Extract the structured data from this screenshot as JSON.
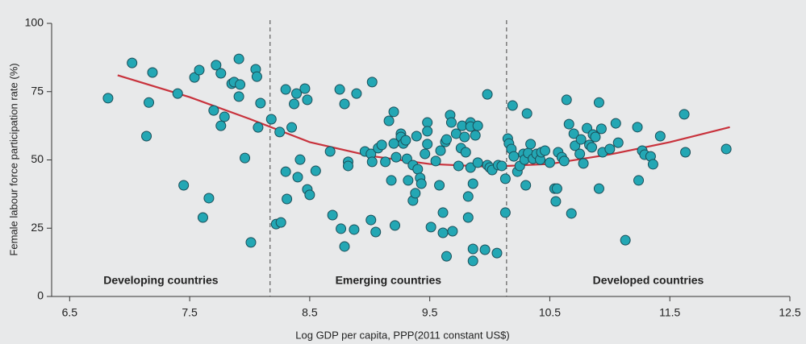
{
  "chart_data": {
    "type": "scatter",
    "xlabel": "Log GDP per capita, PPP(2011 constant US$)",
    "ylabel": "Female labour force participation rate (%)",
    "xlim": [
      6.35,
      12.5
    ],
    "ylim": [
      0,
      100
    ],
    "xticks": [
      6.5,
      7.5,
      8.5,
      9.5,
      10.5,
      11.5,
      12.5
    ],
    "yticks": [
      0,
      25,
      50,
      75,
      100
    ],
    "color": "#23a7b4",
    "x": [
      6.82,
      7.02,
      7.19,
      7.16,
      7.14,
      7.4,
      7.45,
      7.54,
      7.58,
      7.61,
      7.66,
      7.72,
      7.76,
      7.7,
      7.79,
      7.76,
      7.85,
      7.87,
      7.91,
      7.92,
      7.91,
      7.96,
      8.01,
      8.05,
      8.06,
      8.09,
      8.07,
      8.18,
      8.22,
      8.26,
      8.25,
      8.3,
      8.3,
      8.31,
      8.35,
      8.37,
      8.39,
      8.42,
      8.4,
      8.46,
      8.48,
      8.48,
      8.5,
      8.55,
      8.67,
      8.69,
      8.76,
      8.75,
      8.79,
      8.79,
      8.82,
      8.82,
      8.87,
      8.89,
      8.96,
      9.02,
      9.01,
      9.01,
      9.02,
      9.05,
      9.07,
      9.1,
      9.13,
      9.16,
      9.18,
      9.2,
      9.2,
      9.21,
      9.22,
      9.26,
      9.26,
      9.28,
      9.3,
      9.31,
      9.32,
      9.36,
      9.36,
      9.39,
      9.38,
      9.4,
      9.42,
      9.43,
      9.46,
      9.48,
      9.48,
      9.48,
      9.51,
      9.55,
      9.58,
      9.59,
      9.61,
      9.61,
      9.63,
      9.64,
      9.64,
      9.67,
      9.68,
      9.69,
      9.72,
      9.74,
      9.76,
      9.77,
      9.79,
      9.8,
      9.82,
      9.82,
      9.84,
      9.84,
      9.84,
      9.86,
      9.86,
      9.86,
      9.88,
      9.9,
      9.9,
      9.96,
      9.98,
      10.0,
      10.02,
      10.06,
      10.07,
      9.98,
      10.1,
      10.13,
      10.13,
      10.15,
      10.16,
      10.18,
      10.19,
      10.2,
      10.23,
      10.25,
      10.28,
      10.29,
      10.31,
      10.3,
      10.32,
      10.34,
      10.36,
      10.39,
      10.42,
      10.43,
      10.46,
      10.5,
      10.54,
      10.56,
      10.55,
      10.57,
      10.6,
      10.62,
      10.64,
      10.66,
      10.68,
      10.7,
      10.71,
      10.75,
      10.76,
      10.78,
      10.81,
      10.83,
      10.85,
      10.86,
      10.88,
      10.91,
      10.91,
      10.93,
      10.94,
      11.0,
      11.05,
      11.07,
      11.13,
      11.23,
      11.24,
      11.27,
      11.29,
      11.34,
      11.36,
      11.42,
      11.62,
      11.63,
      11.97
    ],
    "values": [
      72.6,
      85.5,
      82,
      71,
      58.7,
      74.3,
      40.7,
      80.2,
      82.9,
      28.9,
      36,
      84.7,
      81.7,
      68.1,
      65.8,
      62.5,
      77.9,
      78.5,
      87,
      77.6,
      73.2,
      50.7,
      19.8,
      83.2,
      80.5,
      70.8,
      61.9,
      64.9,
      26.5,
      27.1,
      60.2,
      75.8,
      45.7,
      35.7,
      61.9,
      70.5,
      74.3,
      50.1,
      43.7,
      76.1,
      72,
      39.2,
      37.2,
      46,
      53.1,
      29.8,
      24.8,
      75.8,
      18.3,
      70.5,
      49.3,
      47.8,
      24.5,
      74.3,
      53.1,
      78.5,
      28,
      52.2,
      49.3,
      23.6,
      54.3,
      55.5,
      49.3,
      64.3,
      42.5,
      67.6,
      56,
      26,
      51,
      59.6,
      58.4,
      56,
      57.2,
      50.4,
      42.5,
      35.1,
      48.1,
      58.7,
      37.8,
      46.6,
      43.4,
      41.3,
      52.2,
      55.8,
      63.7,
      60.5,
      25.4,
      49.6,
      40.7,
      53.4,
      30.7,
      23.3,
      56.6,
      14.7,
      57.5,
      66.4,
      63.7,
      23.9,
      59.6,
      47.8,
      54.3,
      62.5,
      58.4,
      52.8,
      36.6,
      28.9,
      63.7,
      62.2,
      47.2,
      41.3,
      17.4,
      13,
      59,
      49,
      62.5,
      17.1,
      48.1,
      47.2,
      46.3,
      15.9,
      48.1,
      74,
      47.8,
      30.7,
      43.1,
      57.8,
      56,
      54,
      69.9,
      51.3,
      45.7,
      47.8,
      52.2,
      50.1,
      67,
      40.7,
      52.5,
      55.8,
      50.4,
      52.2,
      50.1,
      52.8,
      53.4,
      49,
      39.5,
      39.5,
      34.8,
      52.8,
      51,
      49.6,
      72,
      63.1,
      30.4,
      59.6,
      55.2,
      52.2,
      57.5,
      48.7,
      61.6,
      55.5,
      54.6,
      59.3,
      58.4,
      71,
      39.5,
      61.4,
      52.8,
      54,
      63.4,
      56.3,
      20.6,
      62,
      42.5,
      53.4,
      51.9,
      51.3,
      48.4,
      58.7,
      66.7,
      52.8,
      54
    ],
    "fit": {
      "type": "line",
      "color": "#c8323c",
      "x": [
        6.9,
        7.5,
        8,
        8.5,
        9,
        9.5,
        10,
        10.5,
        11,
        11.5,
        12
      ],
      "values": [
        81,
        73,
        65,
        56.5,
        51.5,
        48.5,
        47.5,
        48.5,
        52,
        56.5,
        62
      ]
    },
    "dividers": [
      8.17,
      10.14
    ],
    "annotations": [
      "Developing countries",
      "Emerging countries",
      "Developed countries"
    ]
  }
}
